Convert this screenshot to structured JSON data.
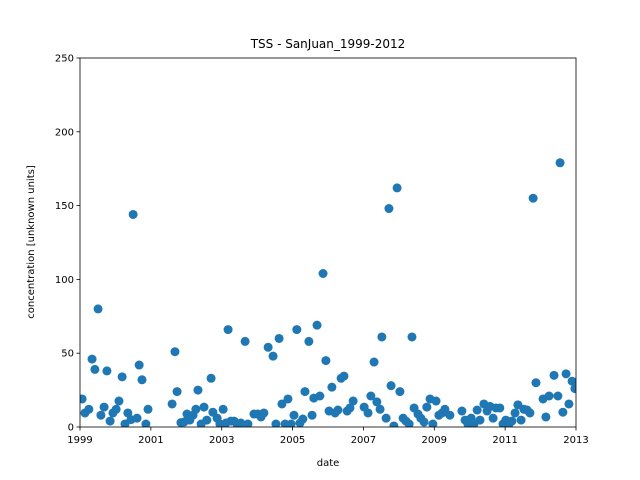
{
  "chart_data": {
    "type": "scatter",
    "title": "TSS - SanJuan_1999-2012",
    "x_label": "date",
    "y_label": "concentration [unknown units]",
    "color": "#1f77b4",
    "xlim": [
      1999,
      2013
    ],
    "xticks": [
      1999,
      2001,
      2003,
      2005,
      2007,
      2009,
      2011,
      2013
    ],
    "ylim": [
      0,
      250
    ],
    "yticks": [
      0,
      50,
      100,
      150,
      200,
      250
    ],
    "x": [
      1999.06,
      1999.14,
      1999.25,
      1999.34,
      1999.42,
      1999.51,
      1999.59,
      1999.68,
      1999.76,
      1999.85,
      1999.93,
      2000.02,
      2000.1,
      2000.19,
      2000.27,
      2000.35,
      2000.44,
      2000.5,
      2000.61,
      2000.67,
      2000.75,
      2000.86,
      2000.92,
      2001.6,
      2001.68,
      2001.74,
      2001.85,
      2001.94,
      2002.02,
      2002.1,
      2002.19,
      2002.27,
      2002.33,
      2002.42,
      2002.5,
      2002.58,
      2002.7,
      2002.75,
      2002.87,
      2002.95,
      2003.04,
      2003.12,
      2003.18,
      2003.26,
      2003.35,
      2003.43,
      2003.54,
      2003.66,
      2003.74,
      2003.91,
      2004.02,
      2004.11,
      2004.19,
      2004.31,
      2004.45,
      2004.53,
      2004.62,
      2004.7,
      2004.79,
      2004.87,
      2004.96,
      2005.04,
      2005.12,
      2005.21,
      2005.29,
      2005.35,
      2005.46,
      2005.55,
      2005.6,
      2005.69,
      2005.77,
      2005.86,
      2005.94,
      2006.03,
      2006.11,
      2006.2,
      2006.28,
      2006.37,
      2006.45,
      2006.54,
      2006.62,
      2006.71,
      2007.02,
      2007.13,
      2007.21,
      2007.3,
      2007.38,
      2007.47,
      2007.52,
      2007.64,
      2007.72,
      2007.78,
      2007.86,
      2007.95,
      2008.03,
      2008.12,
      2008.2,
      2008.29,
      2008.37,
      2008.43,
      2008.54,
      2008.62,
      2008.71,
      2008.79,
      2008.88,
      2008.96,
      2009.05,
      2009.13,
      2009.22,
      2009.3,
      2009.44,
      2009.78,
      2009.87,
      2009.95,
      2010.04,
      2010.12,
      2010.21,
      2010.29,
      2010.4,
      2010.49,
      2010.57,
      2010.66,
      2010.74,
      2010.85,
      2010.94,
      2011.02,
      2011.11,
      2011.19,
      2011.28,
      2011.36,
      2011.45,
      2011.53,
      2011.62,
      2011.7,
      2011.79,
      2011.87,
      2012.07,
      2012.15,
      2012.24,
      2012.38,
      2012.49,
      2012.55,
      2012.63,
      2012.72,
      2012.8,
      2012.89,
      2012.97
    ],
    "values": [
      19,
      9.5,
      12,
      46,
      39,
      80,
      8,
      13.5,
      38,
      4,
      9.5,
      12,
      17.6,
      34,
      2,
      9.5,
      5,
      144,
      6,
      42,
      32,
      2,
      12,
      15.6,
      51,
      24,
      3,
      3.4,
      8.8,
      4.7,
      8,
      12,
      25,
      2,
      13.5,
      4.7,
      33,
      10,
      6,
      2,
      12,
      2.7,
      66,
      4,
      4,
      2,
      2.7,
      58,
      2,
      8.8,
      8.8,
      6.8,
      9.5,
      54,
      48,
      2,
      60,
      15.6,
      2,
      19,
      2,
      8,
      66,
      2.7,
      5.4,
      24,
      58,
      8,
      19.6,
      69,
      21,
      104,
      45,
      10.8,
      27,
      9.5,
      11.5,
      33,
      34.5,
      10.8,
      12.9,
      17.6,
      13.5,
      9.5,
      21,
      44,
      17,
      12,
      61,
      6,
      148,
      28,
      0.7,
      162,
      24,
      6,
      4,
      2,
      61,
      12.9,
      8.8,
      6,
      3.4,
      13.5,
      19,
      2,
      17.6,
      8,
      9.5,
      12,
      8,
      10.8,
      4.7,
      2,
      6,
      2,
      11.5,
      4.7,
      15.6,
      10.8,
      14,
      6,
      12.9,
      12.9,
      2,
      4.7,
      2,
      4,
      9.5,
      15,
      4.7,
      12,
      11.5,
      9.5,
      155,
      30,
      19,
      6.8,
      21,
      35,
      21,
      179,
      10,
      36,
      15.6,
      31,
      26
    ]
  }
}
